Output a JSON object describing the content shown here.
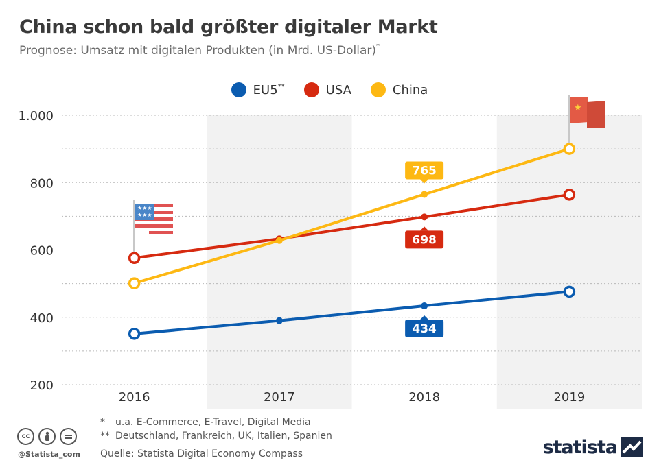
{
  "header": {
    "title": "China schon bald größter digitaler Markt",
    "subtitle": "Prognose: Umsatz mit digitalen Produkten (in Mrd. US-Dollar)",
    "subtitle_mark": "*"
  },
  "legend": [
    {
      "label": "EU5",
      "sup": "**",
      "color": "#0b5cb0"
    },
    {
      "label": "USA",
      "sup": "",
      "color": "#d62a10"
    },
    {
      "label": "China",
      "sup": "",
      "color": "#fdb813"
    }
  ],
  "chart_data": {
    "type": "line",
    "title": "China schon bald größter digitaler Markt",
    "categories": [
      "2016",
      "2017",
      "2018",
      "2019"
    ],
    "ylim": [
      200,
      1000
    ],
    "yticks": [
      200,
      400,
      600,
      800,
      1000
    ],
    "ytick_labels": [
      "200",
      "400",
      "600",
      "800",
      "1.000"
    ],
    "xlabel": "",
    "ylabel": "",
    "grid": true,
    "series": [
      {
        "name": "EU5",
        "color": "#0b5cb0",
        "values": [
          351,
          390,
          434,
          476
        ],
        "labels": {
          "2018": "434"
        },
        "label_position": "below"
      },
      {
        "name": "USA",
        "color": "#d62a10",
        "values": [
          576,
          633,
          698,
          764
        ],
        "labels": {
          "2018": "698"
        },
        "label_position": "below"
      },
      {
        "name": "China",
        "color": "#fdb813",
        "values": [
          501,
          628,
          765,
          900
        ],
        "labels": {
          "2018": "765"
        },
        "label_position": "above"
      }
    ]
  },
  "footnotes": {
    "note1_mark": "*",
    "note1": "u.a. E-Commerce, E-Travel, Digital Media",
    "note2_mark": "**",
    "note2": "Deutschland, Frankreich, UK, Italien, Spanien",
    "source": "Quelle: Statista Digital Economy Compass"
  },
  "branding": {
    "handle": "@Statista_com",
    "logo_text": "statista",
    "license_icons": [
      "cc-icon",
      "by-icon",
      "nd-icon"
    ]
  }
}
